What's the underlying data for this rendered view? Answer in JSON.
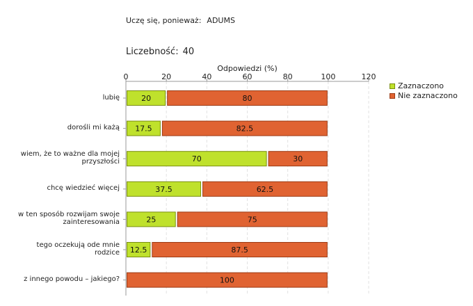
{
  "header": {
    "subtitle_label": "Uczę się, ponieważ:",
    "subtitle_value": "ADUMS",
    "count_label": "Liczebność:",
    "count_value": "40"
  },
  "colors": {
    "series1": "#bfe12c",
    "series1_border": "#7a8f10",
    "series2": "#e06332",
    "series2_border": "#9b3a14",
    "grid": "#e2e2e2",
    "axis": "#999999"
  },
  "chart_data": {
    "type": "bar",
    "orientation": "horizontal",
    "stacked": true,
    "xlabel": "Odpowiedzi (%)",
    "xlim": [
      0,
      120
    ],
    "xticks": [
      0,
      20,
      40,
      60,
      80,
      100,
      120
    ],
    "legend_position": "right",
    "categories": [
      [
        "lubię"
      ],
      [
        "dorośli mi każą"
      ],
      [
        "wiem, że to ważne dla mojej",
        "przyszłości"
      ],
      [
        "chcę wiedzieć więcej"
      ],
      [
        "w ten sposób rozwijam swoje",
        "zainteresowania"
      ],
      [
        "tego oczekują ode mnie",
        "rodzice"
      ],
      [
        "z innego powodu – jakiego?"
      ]
    ],
    "series": [
      {
        "name": "Zaznaczono",
        "values": [
          20,
          17.5,
          70,
          37.5,
          25,
          12.5,
          0
        ],
        "labels": [
          "20",
          "17.5",
          "70",
          "37.5",
          "25",
          "12.5",
          ""
        ]
      },
      {
        "name": "Nie zaznaczono",
        "values": [
          80,
          82.5,
          30,
          62.5,
          75,
          87.5,
          100
        ],
        "labels": [
          "80",
          "82.5",
          "30",
          "62.5",
          "75",
          "87.5",
          "100"
        ]
      }
    ]
  }
}
